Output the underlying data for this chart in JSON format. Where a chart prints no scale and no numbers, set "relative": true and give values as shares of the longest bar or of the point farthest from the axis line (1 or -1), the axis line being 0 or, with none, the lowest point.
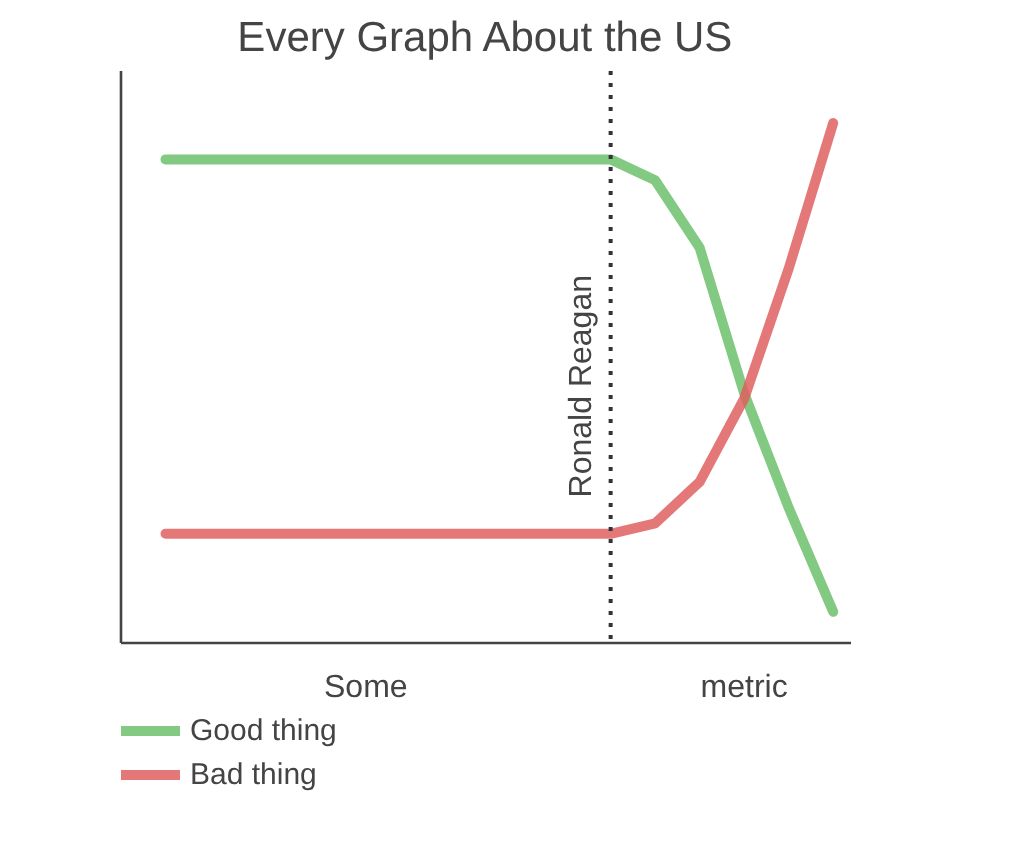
{
  "chart_data": {
    "type": "line",
    "title": "Every Graph About the US",
    "xlabel": "Some metric",
    "relative": true,
    "categories": [
      null,
      null,
      null,
      null,
      null,
      null,
      null,
      null,
      null,
      null,
      null,
      null,
      null,
      null,
      null,
      null
    ],
    "series": [
      {
        "name": "Good thing",
        "color": "#6cbf6c",
        "values": [
          0.93,
          0.93,
          0.93,
          0.93,
          0.93,
          0.93,
          0.93,
          0.93,
          0.93,
          0.93,
          0.93,
          0.89,
          0.76,
          0.48,
          0.26,
          0.06
        ]
      },
      {
        "name": "Bad thing",
        "color": "#df5f5f",
        "values": [
          0.21,
          0.21,
          0.21,
          0.21,
          0.21,
          0.21,
          0.21,
          0.21,
          0.21,
          0.21,
          0.21,
          0.23,
          0.31,
          0.47,
          0.72,
          1.0
        ]
      }
    ],
    "annotations": [
      "Ronald Reagan"
    ],
    "legend": "bottom left",
    "grid": false,
    "marker": "none",
    "line_style": "solid"
  }
}
